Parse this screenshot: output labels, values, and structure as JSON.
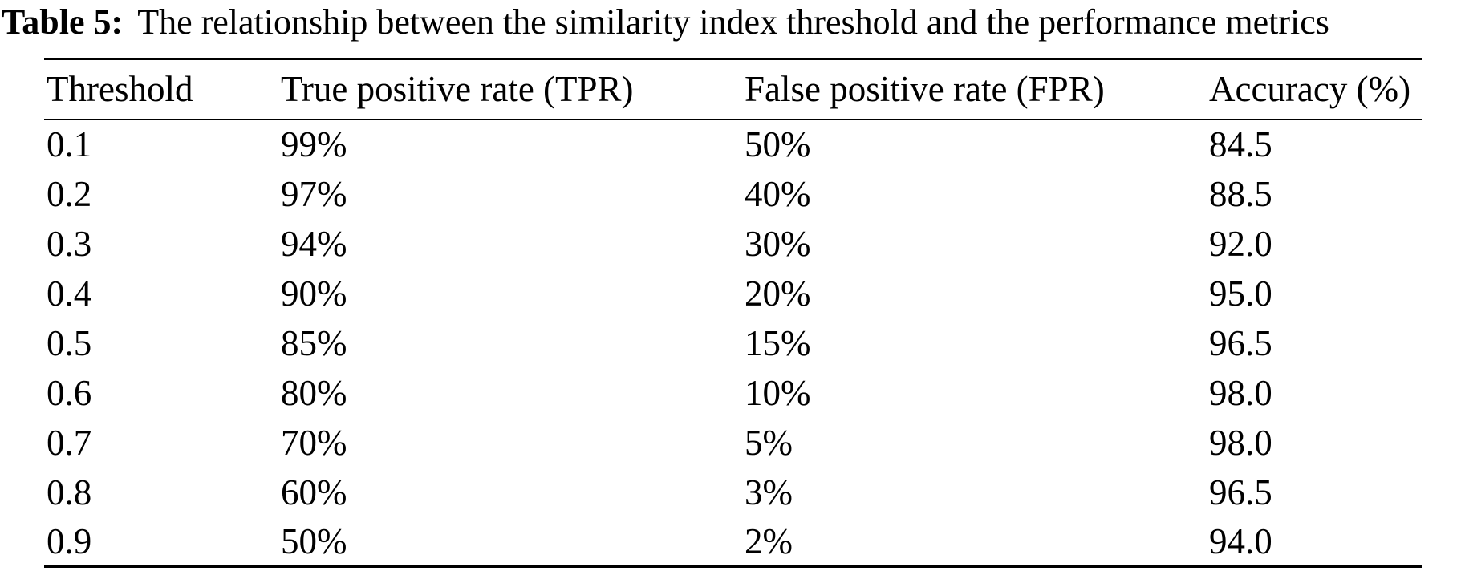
{
  "page": {
    "background_color": "#ffffff",
    "text_color": "#000000"
  },
  "caption": {
    "label": "Table 5:",
    "text": "The relationship between the similarity index threshold and the performance metrics"
  },
  "table": {
    "columns": [
      "Threshold",
      "True positive rate (TPR)",
      "False positive rate (FPR)",
      "Accuracy (%)"
    ],
    "rows": [
      [
        "0.1",
        "99%",
        "50%",
        "84.5"
      ],
      [
        "0.2",
        "97%",
        "40%",
        "88.5"
      ],
      [
        "0.3",
        "94%",
        "30%",
        "92.0"
      ],
      [
        "0.4",
        "90%",
        "20%",
        "95.0"
      ],
      [
        "0.5",
        "85%",
        "15%",
        "96.5"
      ],
      [
        "0.6",
        "80%",
        "10%",
        "98.0"
      ],
      [
        "0.7",
        "70%",
        "5%",
        "98.0"
      ],
      [
        "0.8",
        "60%",
        "3%",
        "96.5"
      ],
      [
        "0.9",
        "50%",
        "2%",
        "94.0"
      ]
    ]
  },
  "chart_data": {
    "type": "table",
    "title": "Table 5: The relationship between the similarity index threshold and the performance metrics",
    "columns": [
      "Threshold",
      "True positive rate (TPR)",
      "False positive rate (FPR)",
      "Accuracy (%)"
    ],
    "rows": [
      [
        0.1,
        "99%",
        "50%",
        84.5
      ],
      [
        0.2,
        "97%",
        "40%",
        88.5
      ],
      [
        0.3,
        "94%",
        "30%",
        92.0
      ],
      [
        0.4,
        "90%",
        "20%",
        95.0
      ],
      [
        0.5,
        "85%",
        "15%",
        96.5
      ],
      [
        0.6,
        "80%",
        "10%",
        98.0
      ],
      [
        0.7,
        "70%",
        "5%",
        98.0
      ],
      [
        0.8,
        "60%",
        "3%",
        96.5
      ],
      [
        0.9,
        "50%",
        "2%",
        94.0
      ]
    ]
  }
}
